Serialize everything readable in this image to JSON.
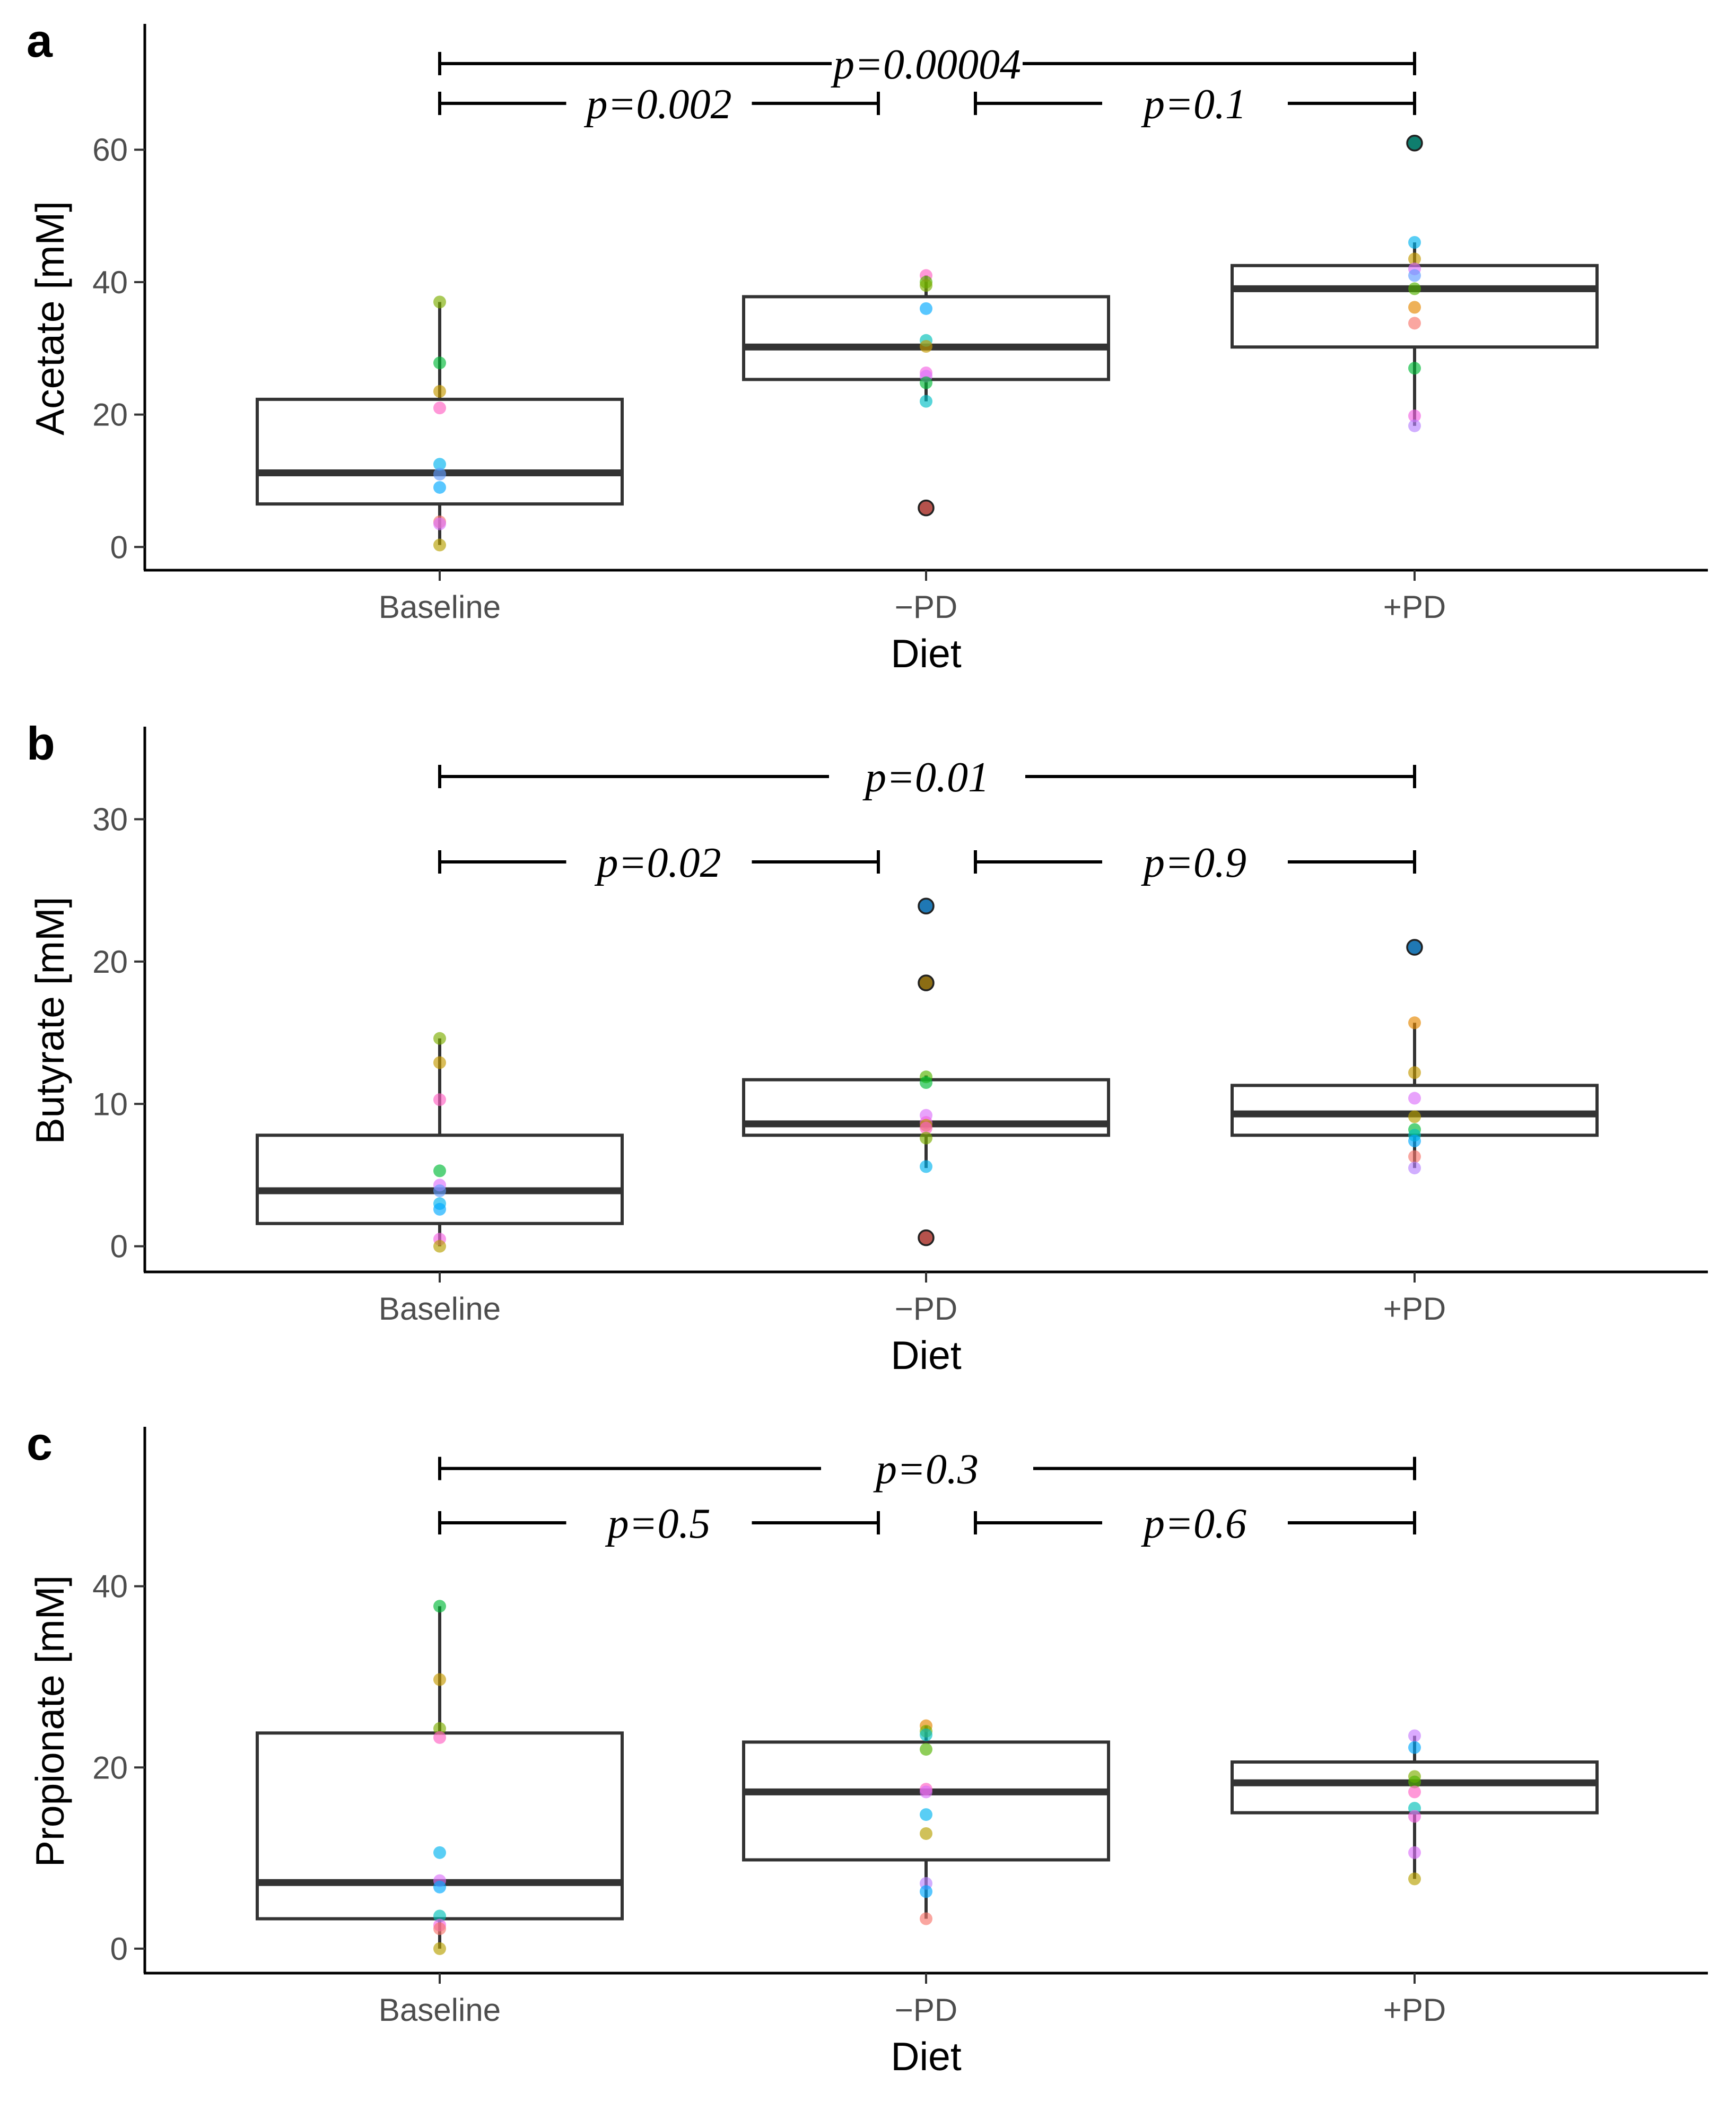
{
  "chart_data": [
    {
      "type": "box",
      "panel": "a",
      "xlabel": "Diet",
      "ylabel": "Acetate [mM]",
      "categories": [
        "Baseline",
        "−PD",
        "+PD"
      ],
      "ylim": [
        -3.5,
        79
      ],
      "yticks": [
        0,
        20,
        40,
        60
      ],
      "boxes": [
        {
          "q1": 6.5,
          "median": 11.2,
          "q3": 22.3,
          "whisker_low": 0.3,
          "whisker_high": 37.0
        },
        {
          "q1": 25.3,
          "median": 30.2,
          "q3": 37.8,
          "whisker_low": 22.0,
          "whisker_high": 41.0
        },
        {
          "q1": 30.2,
          "median": 39.0,
          "q3": 42.5,
          "whisker_low": 18.3,
          "whisker_high": 46.0
        }
      ],
      "points": [
        [
          {
            "y": 37.0,
            "color": "#7CAE00"
          },
          {
            "y": 27.8,
            "color": "#00BA38"
          },
          {
            "y": 23.5,
            "color": "#C49A00"
          },
          {
            "y": 21.0,
            "color": "#FF61C3"
          },
          {
            "y": 12.5,
            "color": "#00B4F0"
          },
          {
            "y": 11.0,
            "color": "#619CFF"
          },
          {
            "y": 9.0,
            "color": "#00A9FF"
          },
          {
            "y": 3.8,
            "color": "#F8766D"
          },
          {
            "y": 3.5,
            "color": "#DB72FB"
          },
          {
            "y": 0.3,
            "color": "#B79F00"
          }
        ],
        [
          {
            "y": 41.0,
            "color": "#FF61C3"
          },
          {
            "y": 40.0,
            "color": "#53B400"
          },
          {
            "y": 39.5,
            "color": "#7CAE00"
          },
          {
            "y": 36.0,
            "color": "#00A9FF"
          },
          {
            "y": 31.2,
            "color": "#00C0B8"
          },
          {
            "y": 30.3,
            "color": "#C49A00"
          },
          {
            "y": 26.3,
            "color": "#F564E3"
          },
          {
            "y": 25.8,
            "color": "#DB72FB"
          },
          {
            "y": 24.8,
            "color": "#00BA38"
          },
          {
            "y": 22.0,
            "color": "#00BFC4"
          }
        ],
        [
          {
            "y": 46.0,
            "color": "#00B4F0"
          },
          {
            "y": 43.5,
            "color": "#C49A00"
          },
          {
            "y": 42.0,
            "color": "#DB72FB"
          },
          {
            "y": 41.0,
            "color": "#619CFF"
          },
          {
            "y": 39.0,
            "color": "#53B400"
          },
          {
            "y": 36.2,
            "color": "#E58700"
          },
          {
            "y": 33.8,
            "color": "#F8766D"
          },
          {
            "y": 27.0,
            "color": "#00BA38"
          },
          {
            "y": 19.8,
            "color": "#F564E3"
          },
          {
            "y": 18.3,
            "color": "#B983FF"
          }
        ]
      ],
      "outliers": [
        {
          "category": 1,
          "y": 5.9,
          "color": "#B5524C"
        },
        {
          "category": 2,
          "y": 61.0,
          "color": "#0E7E6E"
        }
      ],
      "comparisons": [
        {
          "from": 0,
          "to": 2,
          "y": 73.0,
          "label": "p=0.00004"
        },
        {
          "from": 0,
          "to": 1,
          "y": 67.0,
          "label": "p=0.002"
        },
        {
          "from": 1,
          "to": 2,
          "y": 67.0,
          "label": "p=0.1"
        }
      ]
    },
    {
      "type": "box",
      "panel": "b",
      "xlabel": "Diet",
      "ylabel": "Butyrate [mM]",
      "categories": [
        "Baseline",
        "−PD",
        "+PD"
      ],
      "ylim": [
        -1.8,
        36.5
      ],
      "yticks": [
        0,
        10,
        20,
        30
      ],
      "boxes": [
        {
          "q1": 1.6,
          "median": 3.9,
          "q3": 7.8,
          "whisker_low": 0.0,
          "whisker_high": 14.6
        },
        {
          "q1": 7.8,
          "median": 8.6,
          "q3": 11.7,
          "whisker_low": 5.5,
          "whisker_high": 12.0
        },
        {
          "q1": 7.8,
          "median": 9.3,
          "q3": 11.3,
          "whisker_low": 5.5,
          "whisker_high": 15.7
        }
      ],
      "points": [
        [
          {
            "y": 14.6,
            "color": "#7CAE00"
          },
          {
            "y": 12.9,
            "color": "#C49A00"
          },
          {
            "y": 10.3,
            "color": "#FF61C3"
          },
          {
            "y": 5.3,
            "color": "#00BA38"
          },
          {
            "y": 4.3,
            "color": "#DB72FB"
          },
          {
            "y": 3.9,
            "color": "#619CFF"
          },
          {
            "y": 3.0,
            "color": "#00B4F0"
          },
          {
            "y": 2.6,
            "color": "#00A9FF"
          },
          {
            "y": 0.5,
            "color": "#F564E3"
          },
          {
            "y": 0.0,
            "color": "#B79F00"
          }
        ],
        [
          {
            "y": 11.9,
            "color": "#53B400"
          },
          {
            "y": 11.5,
            "color": "#00BA38"
          },
          {
            "y": 9.2,
            "color": "#DB72FB"
          },
          {
            "y": 8.7,
            "color": "#F564E3"
          },
          {
            "y": 8.5,
            "color": "#C49A00"
          },
          {
            "y": 8.3,
            "color": "#FF61C3"
          },
          {
            "y": 7.6,
            "color": "#7CAE00"
          },
          {
            "y": 5.6,
            "color": "#00B4F0"
          }
        ],
        [
          {
            "y": 15.7,
            "color": "#E58700"
          },
          {
            "y": 12.2,
            "color": "#C49A00"
          },
          {
            "y": 10.4,
            "color": "#DB72FB"
          },
          {
            "y": 9.1,
            "color": "#B79F00"
          },
          {
            "y": 8.2,
            "color": "#00BA38"
          },
          {
            "y": 7.8,
            "color": "#00C0B8"
          },
          {
            "y": 7.4,
            "color": "#00A9FF"
          },
          {
            "y": 6.3,
            "color": "#F8766D"
          },
          {
            "y": 5.5,
            "color": "#B983FF"
          }
        ]
      ],
      "outliers": [
        {
          "category": 1,
          "y": 23.9,
          "color": "#1F78B4"
        },
        {
          "category": 1,
          "y": 18.5,
          "color": "#8C6D14"
        },
        {
          "category": 1,
          "y": 0.6,
          "color": "#B5524C"
        },
        {
          "category": 2,
          "y": 21.0,
          "color": "#1F78B4"
        }
      ],
      "comparisons": [
        {
          "from": 0,
          "to": 2,
          "y": 33.0,
          "label": "p=0.01"
        },
        {
          "from": 0,
          "to": 1,
          "y": 27.0,
          "label": "p=0.02"
        },
        {
          "from": 1,
          "to": 2,
          "y": 27.0,
          "label": "p=0.9"
        }
      ]
    },
    {
      "type": "box",
      "panel": "c",
      "xlabel": "Diet",
      "ylabel": "Propionate [mM]",
      "categories": [
        "Baseline",
        "−PD",
        "+PD"
      ],
      "ylim": [
        -2.7,
        57.6
      ],
      "yticks": [
        0,
        20,
        40
      ],
      "boxes": [
        {
          "q1": 3.3,
          "median": 7.3,
          "q3": 23.8,
          "whisker_low": 0.0,
          "whisker_high": 37.8
        },
        {
          "q1": 9.8,
          "median": 17.3,
          "q3": 22.8,
          "whisker_low": 3.3,
          "whisker_high": 24.6
        },
        {
          "q1": 15.0,
          "median": 18.3,
          "q3": 20.6,
          "whisker_low": 7.7,
          "whisker_high": 23.5
        }
      ],
      "points": [
        [
          {
            "y": 37.8,
            "color": "#00BA38"
          },
          {
            "y": 29.7,
            "color": "#C49A00"
          },
          {
            "y": 24.3,
            "color": "#7CAE00"
          },
          {
            "y": 23.3,
            "color": "#FF61C3"
          },
          {
            "y": 10.6,
            "color": "#00B4F0"
          },
          {
            "y": 7.5,
            "color": "#DB72FB"
          },
          {
            "y": 6.8,
            "color": "#00A9FF"
          },
          {
            "y": 3.6,
            "color": "#00C0B8"
          },
          {
            "y": 2.6,
            "color": "#F564E3"
          },
          {
            "y": 2.2,
            "color": "#F8766D"
          },
          {
            "y": 0.0,
            "color": "#B79F00"
          }
        ],
        [
          {
            "y": 24.6,
            "color": "#E58700"
          },
          {
            "y": 24.0,
            "color": "#7CAE00"
          },
          {
            "y": 23.6,
            "color": "#00BFC4"
          },
          {
            "y": 22.0,
            "color": "#53B400"
          },
          {
            "y": 17.6,
            "color": "#FF61C3"
          },
          {
            "y": 17.3,
            "color": "#DB72FB"
          },
          {
            "y": 14.8,
            "color": "#00B4F0"
          },
          {
            "y": 12.7,
            "color": "#B79F00"
          },
          {
            "y": 7.2,
            "color": "#B983FF"
          },
          {
            "y": 6.3,
            "color": "#00A9FF"
          },
          {
            "y": 3.3,
            "color": "#F8766D"
          }
        ],
        [
          {
            "y": 23.5,
            "color": "#C77CFF"
          },
          {
            "y": 22.2,
            "color": "#00A9FF"
          },
          {
            "y": 19.0,
            "color": "#7CAE00"
          },
          {
            "y": 18.4,
            "color": "#53B400"
          },
          {
            "y": 17.3,
            "color": "#FF61C3"
          },
          {
            "y": 15.5,
            "color": "#00C0B8"
          },
          {
            "y": 14.6,
            "color": "#F564E3"
          },
          {
            "y": 10.6,
            "color": "#DB72FB"
          },
          {
            "y": 7.7,
            "color": "#B79F00"
          }
        ]
      ],
      "outliers": [],
      "comparisons": [
        {
          "from": 0,
          "to": 2,
          "y": 53.0,
          "label": "p=0.3"
        },
        {
          "from": 0,
          "to": 1,
          "y": 47.0,
          "label": "p=0.5"
        },
        {
          "from": 1,
          "to": 2,
          "y": 47.0,
          "label": "p=0.6"
        }
      ]
    }
  ]
}
